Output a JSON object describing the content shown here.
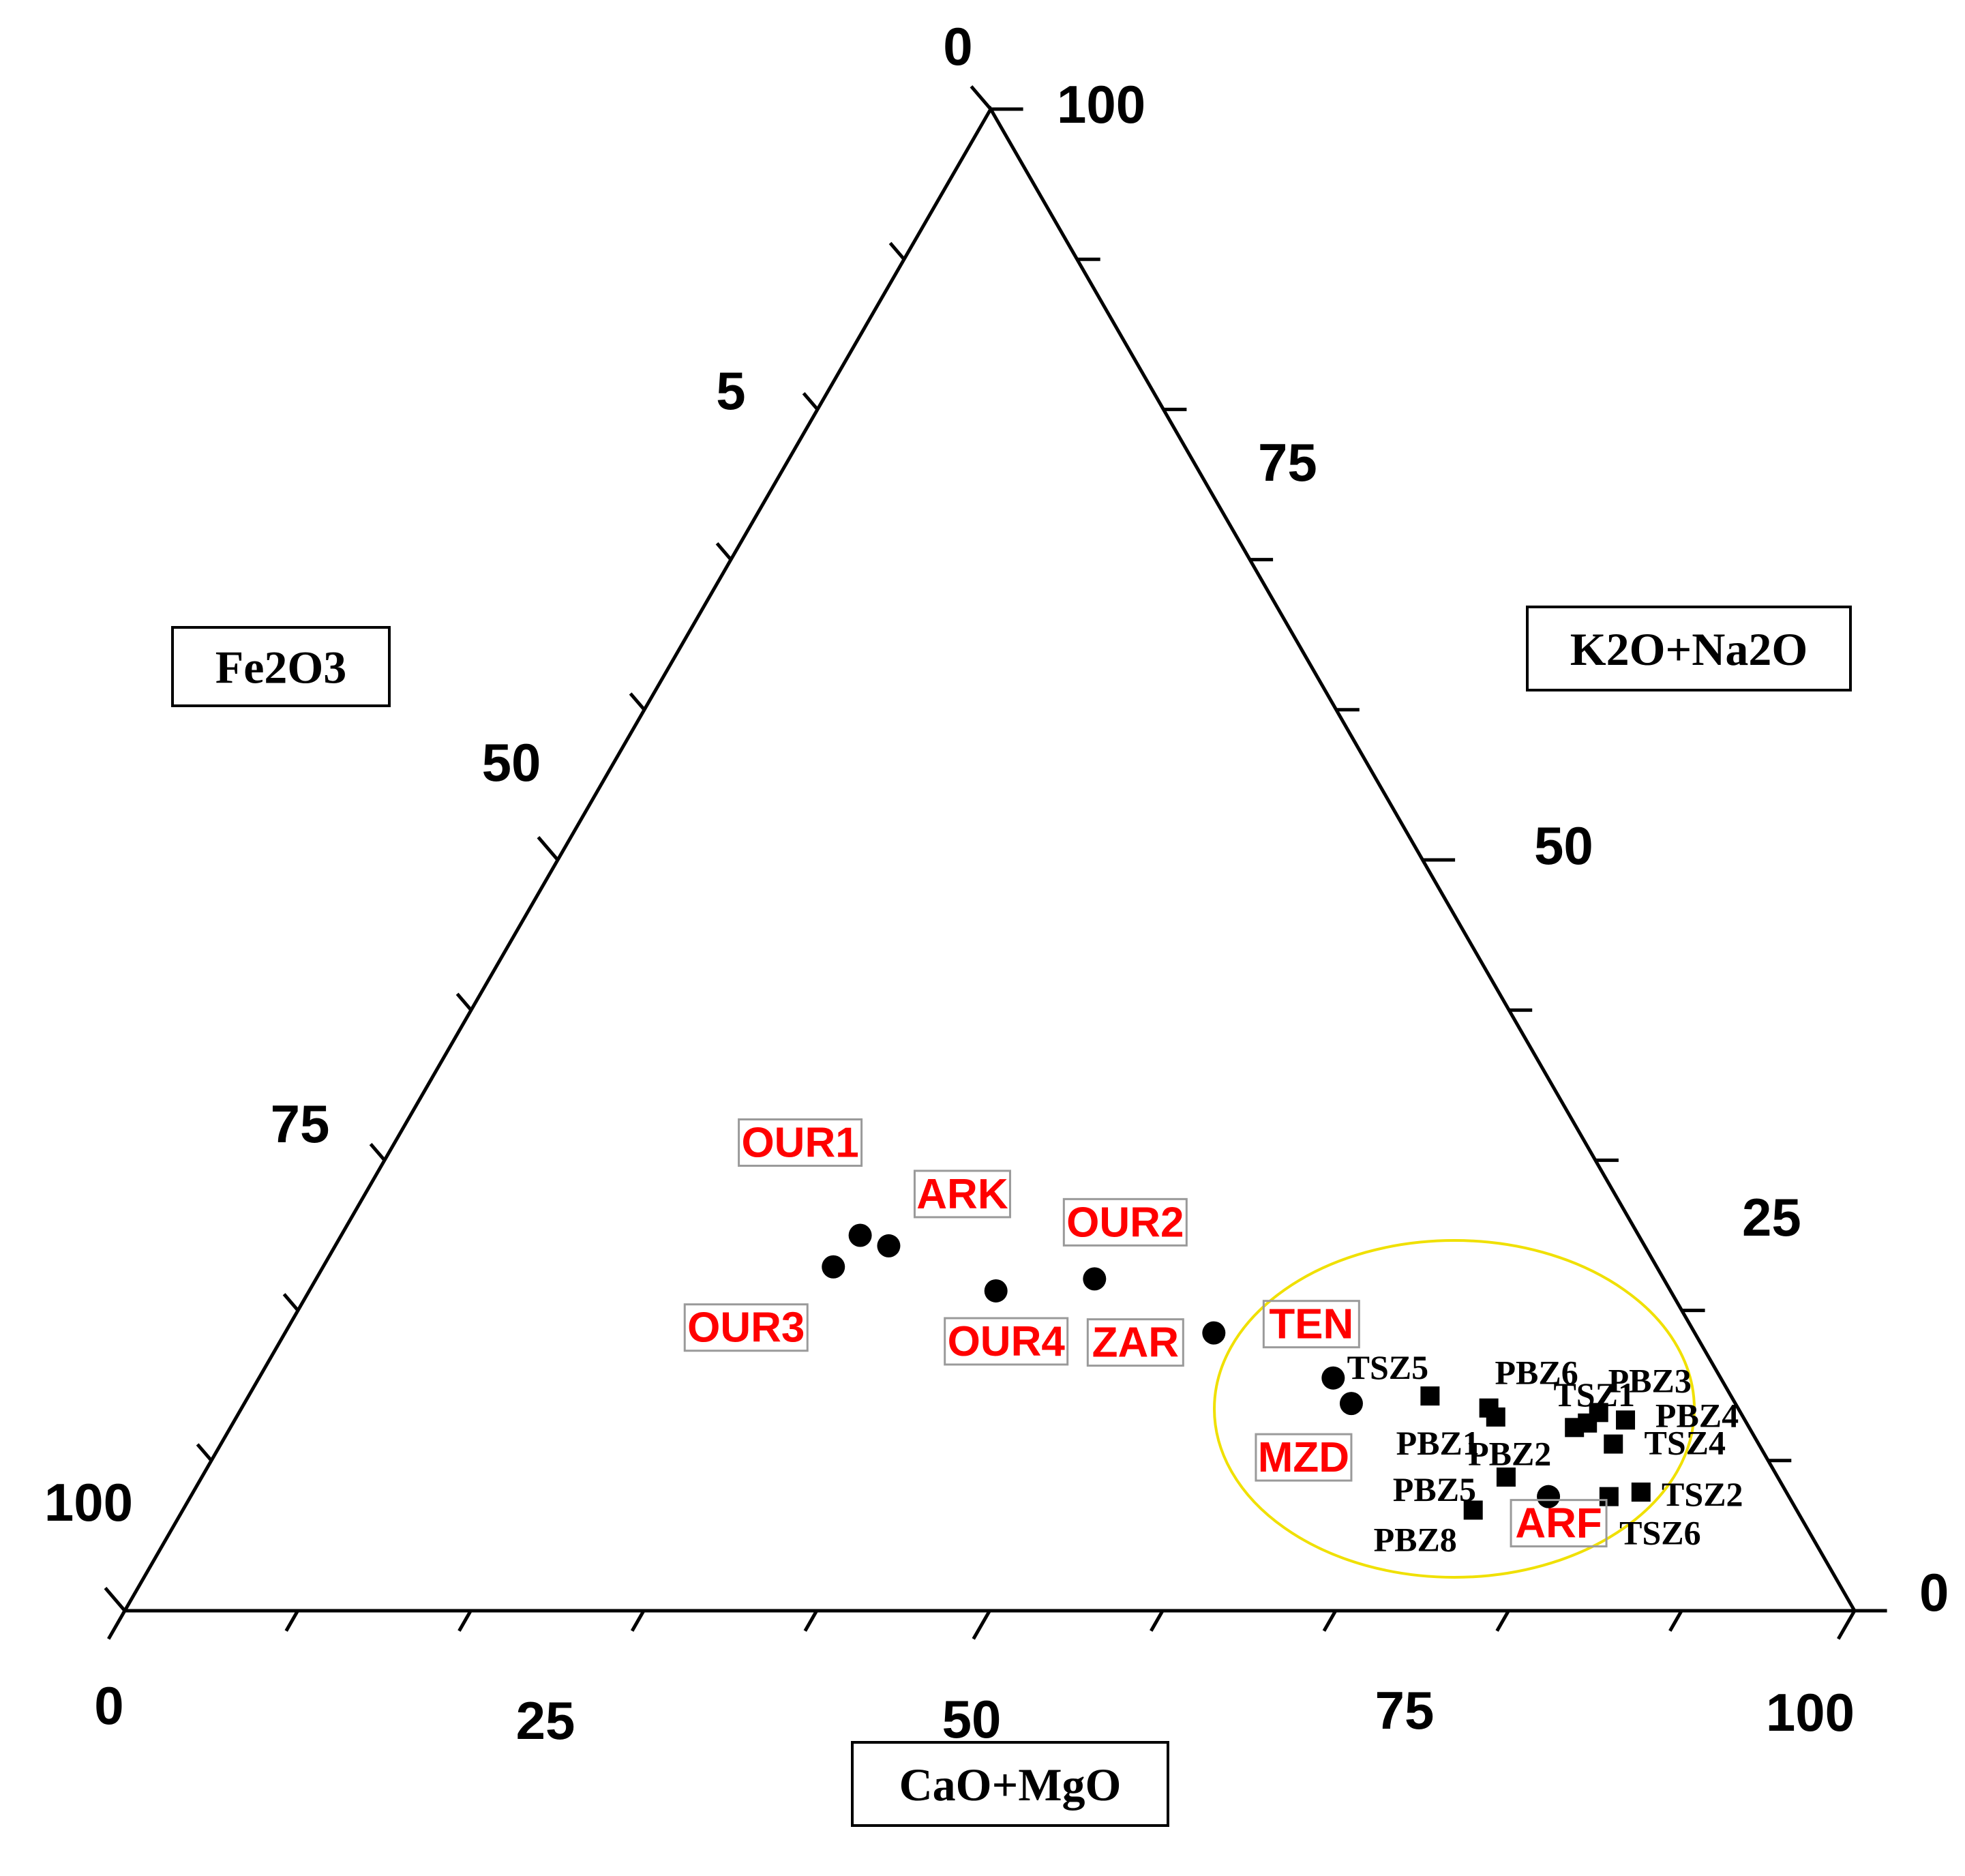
{
  "chart_data": {
    "type": "scatter",
    "subtype": "ternary",
    "axes": {
      "bottom": {
        "title": "CaO+MgO",
        "ticks": [
          "0",
          "25",
          "50",
          "75",
          "100"
        ]
      },
      "left": {
        "title": "Fe2O3",
        "ticks": [
          "0",
          "5",
          "50",
          "75",
          "100"
        ]
      },
      "right": {
        "title": "K2O+Na2O",
        "ticks": [
          "100",
          "75",
          "50",
          "25",
          "0"
        ]
      }
    },
    "series": [
      {
        "marker": "circle",
        "label_color": "#ff0000",
        "points": [
          {
            "label": "OUR1",
            "cao_mgo": 30.0,
            "k2o_na2o": 25.0
          },
          {
            "label": "ARK",
            "cao_mgo": 32.0,
            "k2o_na2o": 24.3
          },
          {
            "label": "OUR3",
            "cao_mgo": 29.5,
            "k2o_na2o": 22.9
          },
          {
            "label": "OUR4",
            "cao_mgo": 39.7,
            "k2o_na2o": 21.3
          },
          {
            "label": "OUR2",
            "cao_mgo": 45.0,
            "k2o_na2o": 22.1
          },
          {
            "label": "ZAR",
            "cao_mgo": 53.7,
            "k2o_na2o": 18.5
          },
          {
            "label": "TEN",
            "cao_mgo": 62.1,
            "k2o_na2o": 15.5
          },
          {
            "label": "MZD",
            "cao_mgo": 64.0,
            "k2o_na2o": 13.8
          },
          {
            "label": "ARF",
            "cao_mgo": 78.5,
            "k2o_na2o": 7.6
          }
        ]
      },
      {
        "marker": "square",
        "label_color": "#000000",
        "points": [
          {
            "label": "TSZ5",
            "cao_mgo": 68.3,
            "k2o_na2o": 14.3
          },
          {
            "label": "PBZ6",
            "cao_mgo": 72.1,
            "k2o_na2o": 13.5
          },
          {
            "label": "PBZ1",
            "cao_mgo": 72.8,
            "k2o_na2o": 12.9
          },
          {
            "label": "PBZ3",
            "cao_mgo": 78.6,
            "k2o_na2o": 13.2
          },
          {
            "label": "PBZ4",
            "cao_mgo": 80.4,
            "k2o_na2o": 12.7
          },
          {
            "label": "PBZ2",
            "cao_mgo": 77.7,
            "k2o_na2o": 12.2
          },
          {
            "label": "TSZ4",
            "cao_mgo": 80.5,
            "k2o_na2o": 11.1
          },
          {
            "label": "PBZ5",
            "cao_mgo": 75.4,
            "k2o_na2o": 8.9
          },
          {
            "label": "TSZ1",
            "cao_mgo": 78.3,
            "k2o_na2o": 12.5
          },
          {
            "label": "TSZ2",
            "cao_mgo": 83.7,
            "k2o_na2o": 7.9
          },
          {
            "label": "TSZ6",
            "cao_mgo": 82.0,
            "k2o_na2o": 7.6
          },
          {
            "label": "PBZ8",
            "cao_mgo": 74.6,
            "k2o_na2o": 6.7
          }
        ]
      }
    ],
    "highlight_ellipse_color": "#f0e000"
  }
}
